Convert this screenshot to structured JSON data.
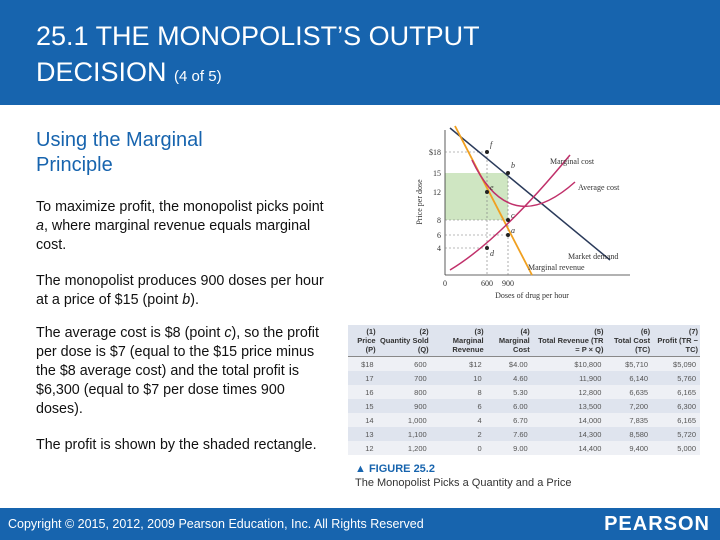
{
  "header": {
    "title_line1": "25.1 THE MONOPOLIST’S OUTPUT",
    "title_line2": "DECISION",
    "part": "(4 of 5)"
  },
  "subheading": "Using the Marginal Principle",
  "paragraphs": [
    [
      "To maximize profit, the monopolist picks point ",
      "a",
      ", where marginal revenue equals marginal cost."
    ],
    [
      "The monopolist produces 900 doses per hour at a price of $15 (point ",
      "b",
      ")."
    ],
    [
      "The average cost is $8 (point ",
      "c",
      "), so the profit per dose is $7 (equal to the $15 price minus the $8 average cost) and the total profit is $6,300 (equal to $7 per dose times 900 doses)."
    ],
    [
      "The profit is shown by the shaded rectangle."
    ]
  ],
  "figure": {
    "y_axis_label": "Price per dose",
    "x_axis_label": "Doses of drug per hour",
    "y_ticks": [
      "$18",
      "15",
      "12",
      "8",
      "6",
      "4"
    ],
    "x_ticks": [
      "0",
      "600",
      "900"
    ],
    "curve_labels": [
      "Marginal cost",
      "Average cost",
      "Market demand",
      "Marginal revenue"
    ],
    "point_labels": [
      "f",
      "b",
      "e",
      "c",
      "a",
      "d"
    ],
    "table": {
      "columns": [
        {
          "number": "(1)",
          "name": "Price (P)"
        },
        {
          "number": "(2)",
          "name": "Quantity Sold (Q)"
        },
        {
          "number": "(3)",
          "name": "Marginal Revenue"
        },
        {
          "number": "(4)",
          "name": "Marginal Cost"
        },
        {
          "number": "(5)",
          "name": "Total Revenue (TR = P × Q)"
        },
        {
          "number": "(6)",
          "name": "Total Cost (TC)"
        },
        {
          "number": "(7)",
          "name": "Profit (TR − TC)"
        }
      ],
      "rows": [
        [
          "$18",
          "600",
          "$12",
          "$4.00",
          "$10,800",
          "$5,710",
          "$5,090"
        ],
        [
          "17",
          "700",
          "10",
          "4.60",
          "11,900",
          "6,140",
          "5,760"
        ],
        [
          "16",
          "800",
          "8",
          "5.30",
          "12,800",
          "6,635",
          "6,165"
        ],
        [
          "15",
          "900",
          "6",
          "6.00",
          "13,500",
          "7,200",
          "6,300"
        ],
        [
          "14",
          "1,000",
          "4",
          "6.70",
          "14,000",
          "7,835",
          "6,165"
        ],
        [
          "13",
          "1,100",
          "2",
          "7.60",
          "14,300",
          "8,580",
          "5,720"
        ],
        [
          "12",
          "1,200",
          "0",
          "9.00",
          "14,400",
          "9,400",
          "5,000"
        ]
      ]
    },
    "caption": {
      "number": "FIGURE 25.2",
      "title": "The Monopolist Picks a Quantity and a Price"
    }
  },
  "footer": {
    "copyright": "Copyright © 2015, 2012, 2009 Pearson Education, Inc. All Rights Reserved",
    "logo": "PEARSON"
  }
}
